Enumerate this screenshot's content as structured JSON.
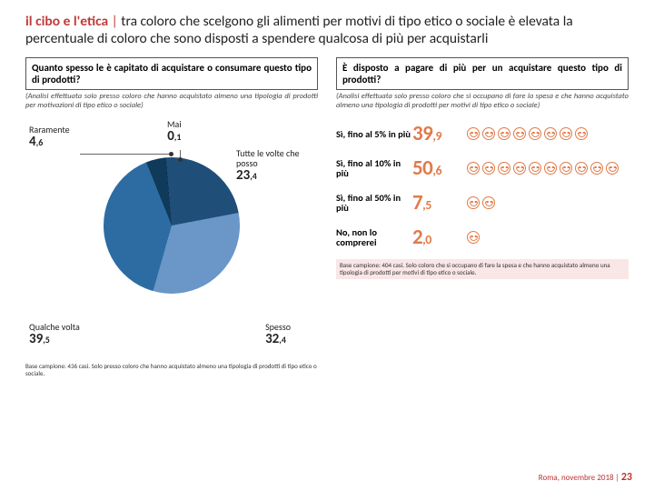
{
  "title": {
    "bold": "il cibo e l'etica",
    "sep": "|",
    "rest": "tra coloro che scelgono gli alimenti per motivi di tipo etico o sociale è elevata la percentuale di coloro che sono disposti a spendere qualcosa di più per acquistarli"
  },
  "left": {
    "question": "Quanto spesso le è capitato di acquistare o consumare questo tipo di prodotti?",
    "sub": "(Analisi effettuata solo presso coloro che hanno acquistato almeno una tipologia di prodotti per motivazioni di tipo etico o sociale)",
    "pie": {
      "type": "pie",
      "slices": [
        {
          "label": "Tutte le volte che posso",
          "value": 23.4,
          "int": "23",
          "dec": ",4",
          "color": "#1f4e79"
        },
        {
          "label": "Spesso",
          "value": 32.4,
          "int": "32",
          "dec": ",4",
          "color": "#6a96c8"
        },
        {
          "label": "Qualche volta",
          "value": 39.5,
          "int": "39",
          "dec": ",5",
          "color": "#2d6ca2"
        },
        {
          "label": "Raramente",
          "value": 4.6,
          "int": "4",
          "dec": ",6",
          "color": "#103a5a"
        },
        {
          "label": "Mai",
          "value": 0.1,
          "int": "0",
          "dec": ",1",
          "color": "#0a2238"
        }
      ],
      "background_color": "#ffffff"
    },
    "base": "Base campione: 436 casi. Solo presso coloro che hanno acquistato almeno una tipologia di prodotti di tipo etico o sociale."
  },
  "right": {
    "question": "È disposto a pagare di più per un acquistare questo tipo di prodotti?",
    "sub": "(Analisi effettuata solo presso coloro che si occupano di fare la spesa e che hanno acquistato almeno una tipologia di prodotti per motivi di tipo etico o sociale)",
    "rows": [
      {
        "label": "Sì, fino al 5% in più",
        "int": "39",
        "dec": ",9",
        "value": 39.9,
        "color": "#e07b4a",
        "icons": 8
      },
      {
        "label": "Sì, fino al 10% in più",
        "int": "50",
        "dec": ",6",
        "value": 50.6,
        "color": "#e07b4a",
        "icons": 10
      },
      {
        "label": "Sì, fino al 50% in più",
        "int": "7",
        "dec": ",5",
        "value": 7.5,
        "color": "#e07b4a",
        "icons": 2
      },
      {
        "label": "No, non lo comprerei",
        "int": "2",
        "dec": ",0",
        "value": 2.0,
        "color": "#e07b4a",
        "icons": 1
      }
    ],
    "base": "Base campione: 404 casi. Solo coloro che si occupano di fare la spesa e che hanno acquistato almeno una tipologia di prodotti per motivi di tipo etico o sociale."
  },
  "footer": {
    "place": "Roma, novembre 2018",
    "sep": "|",
    "page": "23"
  }
}
